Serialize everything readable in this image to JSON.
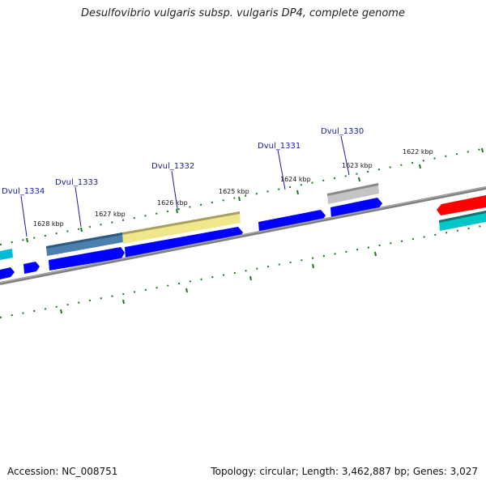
{
  "title": "Desulfovibrio vulgaris subsp. vulgaris DP4, complete genome",
  "footer": {
    "accession": "Accession: NC_008751",
    "stats": "Topology: circular; Length: 3,462,887 bp; Genes: 3,027"
  },
  "ruler": [
    {
      "label": "1628 kbp",
      "kbp": 1628
    },
    {
      "label": "1627 kbp",
      "kbp": 1627
    },
    {
      "label": "1626 kbp",
      "kbp": 1626
    },
    {
      "label": "1625 kbp",
      "kbp": 1625
    },
    {
      "label": "1624 kbp",
      "kbp": 1624
    },
    {
      "label": "1623 kbp",
      "kbp": 1623
    },
    {
      "label": "1622 kbp",
      "kbp": 1622
    }
  ],
  "genes": [
    {
      "name": "Dvul_1334"
    },
    {
      "name": "Dvul_1333"
    },
    {
      "name": "Dvul_1332"
    },
    {
      "name": "Dvul_1331"
    },
    {
      "name": "Dvul_1330"
    }
  ],
  "colors": {
    "forward_cds": "#0000ff",
    "reverse_cds": "#ff0000",
    "steelblue_feature": "#4a7fb0",
    "khaki_feature": "#f0e68c",
    "gray_feature": "#b0b0b0",
    "cyan_feature": "#00c8c8",
    "backbone": "#808080",
    "tick": "#1a7a1a",
    "label": "#1a1aa8"
  }
}
